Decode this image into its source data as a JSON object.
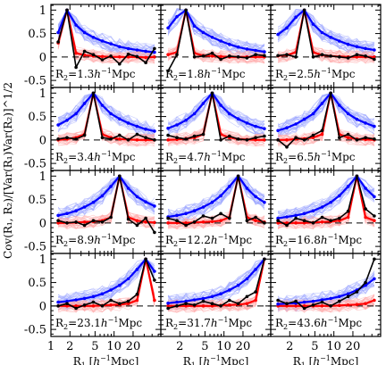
{
  "chart_data": {
    "type": "line",
    "ylabel": "Cov(R₁, R₂)/[Var(R₁)Var(R₂)]^1/2",
    "xlabel_tokens": [
      "R",
      "1",
      " [",
      "h",
      "−1",
      "Mpc]"
    ],
    "x_scale": "log",
    "xlim": [
      1,
      55
    ],
    "ylim": [
      -0.65,
      1.12
    ],
    "x_ticks": [
      {
        "value": 1,
        "label": "1"
      },
      {
        "value": 2,
        "label": "2"
      },
      {
        "value": 5,
        "label": "5"
      },
      {
        "value": 10,
        "label": "10"
      },
      {
        "value": 20,
        "label": "20"
      }
    ],
    "y_ticks": [
      {
        "value": -0.5,
        "label": "-0.5"
      },
      {
        "value": 0,
        "label": "0"
      },
      {
        "value": 0.5,
        "label": "0.5"
      },
      {
        "value": 1,
        "label": "1"
      }
    ],
    "R1_bins": [
      1.3,
      1.8,
      2.5,
      3.4,
      4.7,
      6.5,
      8.9,
      12.2,
      16.8,
      23.1,
      31.7,
      43.6
    ],
    "colors": {
      "blue": "#0000ff",
      "red": "#ff0000",
      "light_blue": "#9da7ff",
      "light_red": "#ffaaaa",
      "black": "#000000"
    },
    "panels": [
      {
        "label_prefix": "R",
        "label_sub": "2",
        "label_value": "=1.3",
        "label_h": "h",
        "label_unit": "Mpc",
        "R2": 1.3,
        "blue": [
          0.52,
          1.0,
          0.68,
          0.52,
          0.42,
          0.34,
          0.28,
          0.22,
          0.18,
          0.15,
          0.12,
          0.1
        ],
        "red": [
          0.3,
          1.0,
          0.08,
          0.04,
          0.02,
          0.01,
          0.0,
          0.0,
          0.0,
          0.0,
          -0.01,
          0.0
        ],
        "black": [
          0.32,
          1.0,
          -0.22,
          0.12,
          0.05,
          -0.06,
          0.02,
          -0.15,
          0.06,
          0.01,
          -0.12,
          0.18
        ]
      },
      {
        "label_prefix": "R",
        "label_sub": "2",
        "label_value": "=1.8",
        "label_h": "h",
        "label_unit": "Mpc",
        "R2": 1.8,
        "blue": [
          0.62,
          0.86,
          1.0,
          0.66,
          0.52,
          0.42,
          0.34,
          0.27,
          0.21,
          0.17,
          0.14,
          0.11
        ],
        "red": [
          0.05,
          0.1,
          1.0,
          0.08,
          0.03,
          0.02,
          0.01,
          0.0,
          0.0,
          0.0,
          0.0,
          0.0
        ],
        "black": [
          -0.3,
          0.05,
          1.0,
          0.0,
          0.02,
          0.08,
          -0.05,
          0.02,
          0.0,
          -0.02,
          0.05,
          0.03
        ]
      },
      {
        "label_prefix": "R",
        "label_sub": "2",
        "label_value": "=2.5",
        "label_h": "h",
        "label_unit": "Mpc",
        "R2": 2.5,
        "blue": [
          0.48,
          0.62,
          0.85,
          1.0,
          0.7,
          0.52,
          0.42,
          0.34,
          0.27,
          0.22,
          0.18,
          0.15
        ],
        "red": [
          0.02,
          0.04,
          0.1,
          1.0,
          0.1,
          0.04,
          0.02,
          0.01,
          0.0,
          0.0,
          0.0,
          0.0
        ],
        "black": [
          0.03,
          0.05,
          0.0,
          1.0,
          0.0,
          0.05,
          0.02,
          0.0,
          -0.02,
          0.05,
          0.02,
          -0.05
        ]
      },
      {
        "label_prefix": "R",
        "label_sub": "2",
        "label_value": "=3.4",
        "label_h": "h",
        "label_unit": "Mpc",
        "R2": 3.4,
        "blue": [
          0.32,
          0.42,
          0.56,
          0.78,
          1.0,
          0.74,
          0.56,
          0.45,
          0.36,
          0.29,
          0.23,
          0.19
        ],
        "red": [
          0.0,
          0.02,
          0.05,
          0.12,
          1.0,
          0.12,
          0.05,
          0.02,
          0.01,
          0.0,
          0.0,
          0.0
        ],
        "black": [
          0.02,
          0.05,
          0.02,
          0.1,
          1.0,
          0.05,
          0.02,
          0.1,
          0.0,
          0.12,
          0.05,
          0.0
        ]
      },
      {
        "label_prefix": "R",
        "label_sub": "2",
        "label_value": "=4.7",
        "label_h": "h",
        "label_unit": "Mpc",
        "R2": 4.7,
        "blue": [
          0.25,
          0.32,
          0.42,
          0.56,
          0.78,
          1.0,
          0.74,
          0.56,
          0.45,
          0.36,
          0.29,
          0.24
        ],
        "red": [
          0.0,
          0.01,
          0.03,
          0.05,
          0.12,
          1.0,
          0.12,
          0.05,
          0.02,
          0.01,
          0.0,
          0.0
        ],
        "black": [
          0.1,
          0.05,
          0.02,
          0.08,
          0.12,
          1.0,
          0.0,
          0.08,
          0.02,
          0.0,
          0.05,
          0.08
        ]
      },
      {
        "label_prefix": "R",
        "label_sub": "2",
        "label_value": "=6.5",
        "label_h": "h",
        "label_unit": "Mpc",
        "R2": 6.5,
        "blue": [
          0.2,
          0.26,
          0.34,
          0.44,
          0.56,
          0.78,
          1.0,
          0.74,
          0.56,
          0.44,
          0.36,
          0.29
        ],
        "red": [
          0.0,
          0.0,
          0.02,
          0.03,
          0.05,
          0.12,
          1.0,
          0.12,
          0.05,
          0.02,
          0.01,
          0.0
        ],
        "black": [
          0.0,
          -0.15,
          0.05,
          0.0,
          0.1,
          0.2,
          1.0,
          0.05,
          0.12,
          0.0,
          0.05,
          0.02
        ]
      },
      {
        "label_prefix": "R",
        "label_sub": "2",
        "label_value": "=8.9",
        "label_h": "h",
        "label_unit": "Mpc",
        "R2": 8.9,
        "blue": [
          0.16,
          0.2,
          0.26,
          0.34,
          0.44,
          0.58,
          0.78,
          1.0,
          0.74,
          0.56,
          0.45,
          0.36
        ],
        "red": [
          0.0,
          0.0,
          0.01,
          0.02,
          0.03,
          0.05,
          0.12,
          1.0,
          0.12,
          0.05,
          0.02,
          0.01
        ],
        "black": [
          0.05,
          0.0,
          0.02,
          -0.05,
          0.05,
          0.02,
          0.12,
          1.0,
          0.08,
          -0.05,
          0.1,
          -0.2
        ]
      },
      {
        "label_prefix": "R",
        "label_sub": "2",
        "label_value": "=12.2",
        "label_h": "h",
        "label_unit": "Mpc",
        "R2": 12.2,
        "blue": [
          0.13,
          0.16,
          0.2,
          0.26,
          0.34,
          0.44,
          0.58,
          0.78,
          1.0,
          0.74,
          0.56,
          0.44
        ],
        "red": [
          0.0,
          0.0,
          0.0,
          0.01,
          0.02,
          0.03,
          0.05,
          0.12,
          1.0,
          0.12,
          0.05,
          0.02
        ],
        "black": [
          0.1,
          0.05,
          -0.05,
          0.02,
          0.15,
          0.1,
          0.2,
          0.1,
          1.0,
          0.05,
          0.12,
          0.0
        ]
      },
      {
        "label_prefix": "R",
        "label_sub": "2",
        "label_value": "=16.8",
        "label_h": "h",
        "label_unit": "Mpc",
        "R2": 16.8,
        "blue": [
          0.1,
          0.13,
          0.16,
          0.2,
          0.26,
          0.34,
          0.44,
          0.58,
          0.78,
          1.0,
          0.74,
          0.56
        ],
        "red": [
          0.0,
          0.0,
          0.0,
          0.0,
          0.01,
          0.02,
          0.03,
          0.05,
          0.12,
          1.0,
          0.12,
          0.05
        ],
        "black": [
          0.05,
          -0.05,
          0.1,
          0.05,
          0.0,
          0.12,
          0.05,
          0.1,
          0.25,
          1.0,
          0.3,
          0.15
        ]
      },
      {
        "label_prefix": "R",
        "label_sub": "2",
        "label_value": "=23.1",
        "label_h": "h",
        "label_unit": "Mpc",
        "R2": 23.1,
        "blue": [
          0.08,
          0.1,
          0.13,
          0.16,
          0.2,
          0.26,
          0.34,
          0.44,
          0.58,
          0.78,
          1.0,
          0.74
        ],
        "red": [
          0.0,
          0.0,
          0.0,
          0.0,
          0.0,
          0.01,
          0.02,
          0.03,
          0.05,
          0.12,
          1.0,
          0.12
        ],
        "black": [
          0.0,
          0.05,
          -0.05,
          0.02,
          0.08,
          0.0,
          0.12,
          0.05,
          0.1,
          0.25,
          1.0,
          0.55
        ]
      },
      {
        "label_prefix": "R",
        "label_sub": "2",
        "label_value": "=31.7",
        "label_h": "h",
        "label_unit": "Mpc",
        "R2": 31.7,
        "blue": [
          0.06,
          0.08,
          0.1,
          0.13,
          0.16,
          0.2,
          0.26,
          0.34,
          0.44,
          0.58,
          0.78,
          1.0
        ],
        "red": [
          0.0,
          0.0,
          0.0,
          0.0,
          0.0,
          0.0,
          0.01,
          0.02,
          0.03,
          0.05,
          0.12,
          1.0
        ],
        "black": [
          -0.05,
          0.0,
          0.05,
          0.02,
          0.1,
          0.05,
          0.0,
          0.12,
          0.05,
          0.2,
          0.3,
          1.0
        ]
      },
      {
        "label_prefix": "R",
        "label_sub": "2",
        "label_value": "=43.6",
        "label_h": "h",
        "label_unit": "Mpc",
        "R2": 43.6,
        "blue": [
          0.04,
          0.05,
          0.06,
          0.08,
          0.1,
          0.13,
          0.16,
          0.2,
          0.26,
          0.34,
          0.44,
          0.58
        ],
        "red": [
          0.0,
          0.0,
          0.0,
          0.0,
          0.0,
          0.0,
          0.0,
          0.01,
          0.02,
          0.03,
          0.05,
          0.12
        ],
        "black": [
          0.12,
          0.05,
          0.1,
          -0.05,
          0.02,
          0.08,
          0.0,
          0.1,
          0.2,
          0.3,
          0.5,
          1.0
        ]
      }
    ]
  }
}
